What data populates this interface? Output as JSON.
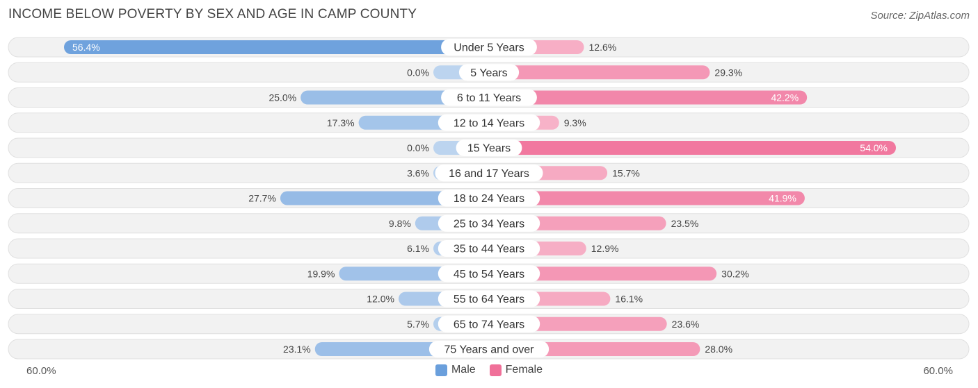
{
  "header": {
    "title": "INCOME BELOW POVERTY BY SEX AND AGE IN CAMP COUNTY",
    "source": "Source: ZipAtlas.com"
  },
  "axis": {
    "left_label": "60.0%",
    "right_label": "60.0%"
  },
  "legend": {
    "male_label": "Male",
    "female_label": "Female",
    "male_color": "#6a9fdc",
    "female_color": "#f07099"
  },
  "chart_data": {
    "type": "bar",
    "orientation": "horizontal-diverging",
    "title": "INCOME BELOW POVERTY BY SEX AND AGE IN CAMP COUNTY",
    "unit": "%",
    "xlim": [
      -60,
      60
    ],
    "categories": [
      "Under 5 Years",
      "5 Years",
      "6 to 11 Years",
      "12 to 14 Years",
      "15 Years",
      "16 and 17 Years",
      "18 to 24 Years",
      "25 to 34 Years",
      "35 to 44 Years",
      "45 to 54 Years",
      "55 to 64 Years",
      "65 to 74 Years",
      "75 Years and over"
    ],
    "series": [
      {
        "name": "Male",
        "values": [
          56.4,
          0.0,
          25.0,
          17.3,
          0.0,
          3.6,
          27.7,
          9.8,
          6.1,
          19.9,
          12.0,
          5.7,
          23.1
        ],
        "labels": [
          "56.4%",
          "0.0%",
          "25.0%",
          "17.3%",
          "0.0%",
          "3.6%",
          "27.7%",
          "9.8%",
          "6.1%",
          "19.9%",
          "12.0%",
          "5.7%",
          "23.1%"
        ]
      },
      {
        "name": "Female",
        "values": [
          12.6,
          29.3,
          42.2,
          9.3,
          54.0,
          15.7,
          41.9,
          23.5,
          12.9,
          30.2,
          16.1,
          23.6,
          28.0
        ],
        "labels": [
          "12.6%",
          "29.3%",
          "42.2%",
          "9.3%",
          "54.0%",
          "15.7%",
          "41.9%",
          "23.5%",
          "12.9%",
          "30.2%",
          "16.1%",
          "23.6%",
          "28.0%"
        ]
      }
    ]
  }
}
